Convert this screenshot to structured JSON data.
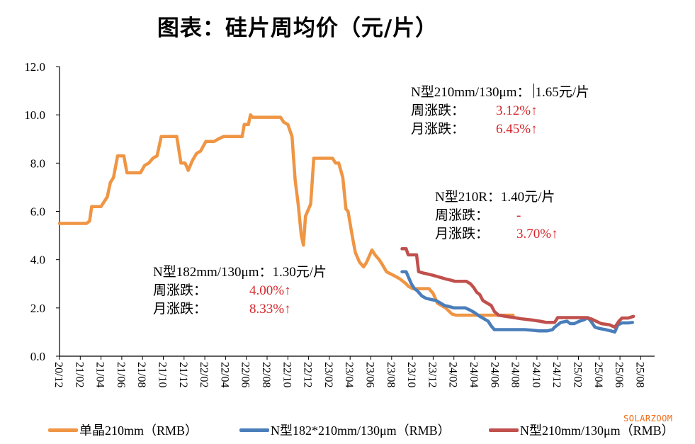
{
  "title": "图表：硅片周均价（元/片）",
  "brand": "SOLARZOOM",
  "annotations": [
    {
      "name": "n210",
      "head": "N型210mm/130μm：",
      "price": "1.65元/片",
      "week_label": "周涨跌：",
      "week_value": "3.12%↑",
      "month_label": "月涨跌：",
      "month_value": "6.45%↑"
    },
    {
      "name": "n210r",
      "head": "N型210R：",
      "price": "1.40元/片",
      "week_label": "周涨跌：",
      "week_value": "-",
      "month_label": "月涨跌：",
      "month_value": "3.70%↑"
    },
    {
      "name": "n182",
      "head": "N型182mm/130μm：",
      "price": "1.30元/片",
      "week_label": "周涨跌：",
      "week_value": "4.00%↑",
      "month_label": "月涨跌：",
      "month_value": "8.33%↑"
    }
  ],
  "colors": {
    "mono210": "#ef9544",
    "n182": "#4a7ebb",
    "n210": "#c0504d",
    "change": "#d7262b",
    "brand": "#f26b13"
  },
  "chart_data": {
    "type": "line",
    "title": "图表：硅片周均价（元/片）",
    "xlabel": "",
    "ylabel": "",
    "ylim": [
      0,
      12
    ],
    "yticks": [
      "0.0",
      "2.0",
      "4.0",
      "6.0",
      "8.0",
      "10.0",
      "12.0"
    ],
    "xticks": [
      "20/12",
      "21/02",
      "21/04",
      "21/06",
      "21/08",
      "21/10",
      "21/12",
      "22/02",
      "22/04",
      "22/06",
      "22/08",
      "22/10",
      "22/12",
      "23/02",
      "23/04",
      "23/06",
      "23/08",
      "23/10",
      "23/12",
      "24/02",
      "24/04",
      "24/06",
      "24/08",
      "24/10",
      "24/12",
      "25/02",
      "25/04",
      "25/06",
      "25/08"
    ],
    "x_unit": "months since 2020-12",
    "grid": false,
    "legend_position": "bottom",
    "series": [
      {
        "name": "单晶210mm（RMB）",
        "color": "#ef9544",
        "points": [
          [
            0,
            5.5
          ],
          [
            2.6,
            5.5
          ],
          [
            2.9,
            5.6
          ],
          [
            3.1,
            6.2
          ],
          [
            4.0,
            6.2
          ],
          [
            4.3,
            6.4
          ],
          [
            4.6,
            6.6
          ],
          [
            4.9,
            7.2
          ],
          [
            5.2,
            7.4
          ],
          [
            5.6,
            8.3
          ],
          [
            6.2,
            8.3
          ],
          [
            6.5,
            7.6
          ],
          [
            7.8,
            7.6
          ],
          [
            8.2,
            7.9
          ],
          [
            8.6,
            8.0
          ],
          [
            9.0,
            8.2
          ],
          [
            9.4,
            8.3
          ],
          [
            9.8,
            9.1
          ],
          [
            11.3,
            9.1
          ],
          [
            11.7,
            8.0
          ],
          [
            12.1,
            8.0
          ],
          [
            12.4,
            7.7
          ],
          [
            12.8,
            8.1
          ],
          [
            13.2,
            8.4
          ],
          [
            13.6,
            8.5
          ],
          [
            14.1,
            8.9
          ],
          [
            14.9,
            8.9
          ],
          [
            15.3,
            9.0
          ],
          [
            15.8,
            9.1
          ],
          [
            16.2,
            9.1
          ],
          [
            17.6,
            9.1
          ],
          [
            17.8,
            9.6
          ],
          [
            18.2,
            9.6
          ],
          [
            18.4,
            10.0
          ],
          [
            18.6,
            9.9
          ],
          [
            21.3,
            9.9
          ],
          [
            21.6,
            9.7
          ],
          [
            22.0,
            9.6
          ],
          [
            22.4,
            9.1
          ],
          [
            22.7,
            7.3
          ],
          [
            23.0,
            6.3
          ],
          [
            23.3,
            5.0
          ],
          [
            23.5,
            4.6
          ],
          [
            23.7,
            5.8
          ],
          [
            24.2,
            6.3
          ],
          [
            24.5,
            8.2
          ],
          [
            26.3,
            8.2
          ],
          [
            26.6,
            8.0
          ],
          [
            26.9,
            8.0
          ],
          [
            27.3,
            7.4
          ],
          [
            27.6,
            6.1
          ],
          [
            27.8,
            6.0
          ],
          [
            28.2,
            5.0
          ],
          [
            28.5,
            4.3
          ],
          [
            28.9,
            3.9
          ],
          [
            29.3,
            3.7
          ],
          [
            29.6,
            3.9
          ],
          [
            29.9,
            4.2
          ],
          [
            30.1,
            4.4
          ],
          [
            30.4,
            4.2
          ],
          [
            30.8,
            4.0
          ],
          [
            31.1,
            3.8
          ],
          [
            31.5,
            3.5
          ],
          [
            32.4,
            3.3
          ],
          [
            32.8,
            3.2
          ],
          [
            33.4,
            3.0
          ],
          [
            33.6,
            2.9
          ],
          [
            34.0,
            2.8
          ],
          [
            35.6,
            2.8
          ],
          [
            36.0,
            2.6
          ],
          [
            36.4,
            2.2
          ],
          [
            36.8,
            2.1
          ],
          [
            37.2,
            2.0
          ],
          [
            37.8,
            1.75
          ],
          [
            38.2,
            1.7
          ],
          [
            43.7,
            1.7
          ]
        ]
      },
      {
        "name": "N型182*210mm/130μm（RMB）",
        "color": "#4a7ebb",
        "points": [
          [
            33.0,
            3.5
          ],
          [
            33.4,
            3.5
          ],
          [
            33.6,
            3.3
          ],
          [
            33.9,
            3.0
          ],
          [
            34.2,
            2.8
          ],
          [
            34.5,
            2.7
          ],
          [
            34.9,
            2.5
          ],
          [
            35.3,
            2.4
          ],
          [
            35.8,
            2.35
          ],
          [
            36.3,
            2.3
          ],
          [
            36.7,
            2.2
          ],
          [
            37.1,
            2.1
          ],
          [
            37.6,
            2.05
          ],
          [
            38.0,
            2.0
          ],
          [
            39.1,
            2.0
          ],
          [
            39.6,
            1.9
          ],
          [
            40.0,
            1.8
          ],
          [
            40.5,
            1.65
          ],
          [
            40.9,
            1.55
          ],
          [
            41.3,
            1.45
          ],
          [
            41.6,
            1.25
          ],
          [
            41.9,
            1.1
          ],
          [
            44.8,
            1.1
          ],
          [
            45.5,
            1.08
          ],
          [
            46.2,
            1.05
          ],
          [
            47.0,
            1.05
          ],
          [
            47.5,
            1.1
          ],
          [
            47.7,
            1.2
          ],
          [
            48.3,
            1.4
          ],
          [
            48.9,
            1.45
          ],
          [
            49.2,
            1.35
          ],
          [
            49.6,
            1.35
          ],
          [
            50.1,
            1.45
          ],
          [
            50.5,
            1.5
          ],
          [
            50.9,
            1.6
          ],
          [
            51.2,
            1.45
          ],
          [
            51.6,
            1.2
          ],
          [
            52.0,
            1.15
          ],
          [
            52.6,
            1.1
          ],
          [
            53.1,
            1.05
          ],
          [
            53.5,
            1.0
          ],
          [
            53.8,
            1.3
          ],
          [
            54.2,
            1.38
          ],
          [
            54.8,
            1.38
          ],
          [
            55.2,
            1.4
          ]
        ]
      },
      {
        "name": "N型210mm/130μm（RMB）",
        "color": "#c0504d",
        "points": [
          [
            33.0,
            4.45
          ],
          [
            33.4,
            4.45
          ],
          [
            33.6,
            4.2
          ],
          [
            34.4,
            4.2
          ],
          [
            34.6,
            3.5
          ],
          [
            35.0,
            3.45
          ],
          [
            35.5,
            3.4
          ],
          [
            36.0,
            3.35
          ],
          [
            36.4,
            3.3
          ],
          [
            36.8,
            3.25
          ],
          [
            37.2,
            3.2
          ],
          [
            37.7,
            3.15
          ],
          [
            38.1,
            3.1
          ],
          [
            39.2,
            3.1
          ],
          [
            39.6,
            3.0
          ],
          [
            39.9,
            2.85
          ],
          [
            40.2,
            2.65
          ],
          [
            40.5,
            2.55
          ],
          [
            40.8,
            2.3
          ],
          [
            41.2,
            2.2
          ],
          [
            41.6,
            2.1
          ],
          [
            41.9,
            1.85
          ],
          [
            42.3,
            1.7
          ],
          [
            43.0,
            1.65
          ],
          [
            43.8,
            1.6
          ],
          [
            44.5,
            1.55
          ],
          [
            45.5,
            1.5
          ],
          [
            46.3,
            1.45
          ],
          [
            46.9,
            1.4
          ],
          [
            47.7,
            1.4
          ],
          [
            48.0,
            1.6
          ],
          [
            49.0,
            1.6
          ],
          [
            50.0,
            1.6
          ],
          [
            50.7,
            1.6
          ],
          [
            51.2,
            1.55
          ],
          [
            51.7,
            1.45
          ],
          [
            52.2,
            1.35
          ],
          [
            53.0,
            1.3
          ],
          [
            53.5,
            1.2
          ],
          [
            53.9,
            1.45
          ],
          [
            54.2,
            1.58
          ],
          [
            54.8,
            1.58
          ],
          [
            55.3,
            1.65
          ]
        ]
      }
    ]
  }
}
